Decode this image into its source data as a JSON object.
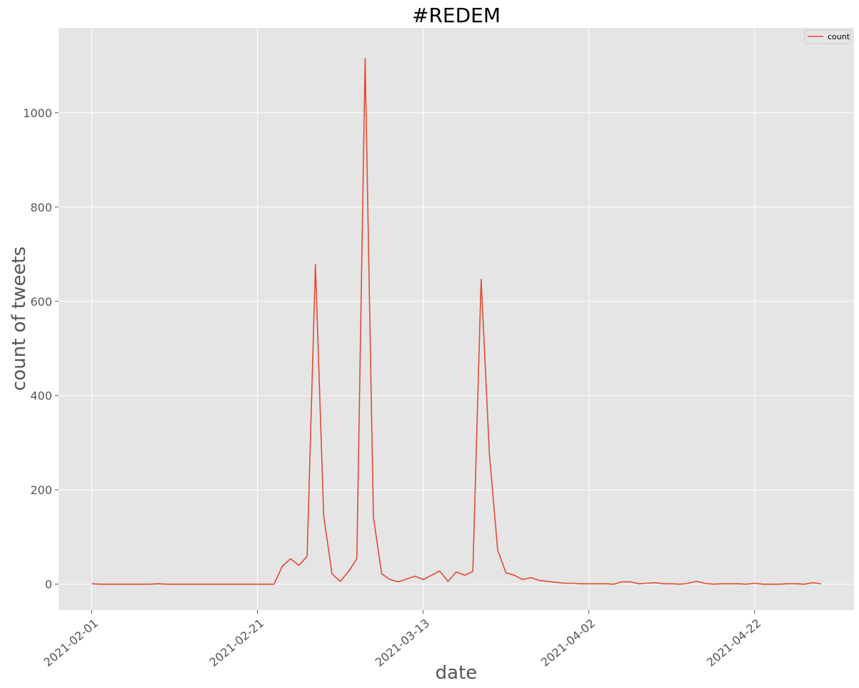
{
  "chart_data": {
    "type": "line",
    "title": "#REDEM",
    "xlabel": "date",
    "ylabel": "count of tweets",
    "grid": true,
    "legend_position": "top-right",
    "xlim": [
      "2021-01-28",
      "2021-05-04"
    ],
    "ylim": [
      -55,
      1180
    ],
    "x_ticks": [
      "2021-02-01",
      "2021-02-21",
      "2021-03-13",
      "2021-04-02",
      "2021-04-22"
    ],
    "y_ticks": [
      0,
      200,
      400,
      600,
      800,
      1000
    ],
    "colors": {
      "background": "#e5e5e5",
      "grid": "#ffffff",
      "line": "#e24a33"
    },
    "series": [
      {
        "name": "count",
        "x": [
          "2021-02-01",
          "2021-02-02",
          "2021-02-03",
          "2021-02-04",
          "2021-02-05",
          "2021-02-06",
          "2021-02-07",
          "2021-02-08",
          "2021-02-09",
          "2021-02-10",
          "2021-02-11",
          "2021-02-12",
          "2021-02-13",
          "2021-02-14",
          "2021-02-15",
          "2021-02-16",
          "2021-02-17",
          "2021-02-18",
          "2021-02-19",
          "2021-02-20",
          "2021-02-21",
          "2021-02-22",
          "2021-02-23",
          "2021-02-24",
          "2021-02-25",
          "2021-02-26",
          "2021-02-27",
          "2021-02-28",
          "2021-03-01",
          "2021-03-02",
          "2021-03-03",
          "2021-03-04",
          "2021-03-05",
          "2021-03-06",
          "2021-03-07",
          "2021-03-08",
          "2021-03-09",
          "2021-03-10",
          "2021-03-11",
          "2021-03-12",
          "2021-03-13",
          "2021-03-14",
          "2021-03-15",
          "2021-03-16",
          "2021-03-17",
          "2021-03-18",
          "2021-03-19",
          "2021-03-20",
          "2021-03-21",
          "2021-03-22",
          "2021-03-23",
          "2021-03-24",
          "2021-03-25",
          "2021-03-26",
          "2021-03-27",
          "2021-03-28",
          "2021-03-29",
          "2021-03-30",
          "2021-03-31",
          "2021-04-01",
          "2021-04-02",
          "2021-04-03",
          "2021-04-04",
          "2021-04-05",
          "2021-04-06",
          "2021-04-07",
          "2021-04-08",
          "2021-04-09",
          "2021-04-10",
          "2021-04-11",
          "2021-04-12",
          "2021-04-13",
          "2021-04-14",
          "2021-04-15",
          "2021-04-16",
          "2021-04-17",
          "2021-04-18",
          "2021-04-19",
          "2021-04-20",
          "2021-04-21",
          "2021-04-22",
          "2021-04-23",
          "2021-04-24",
          "2021-04-25",
          "2021-04-26",
          "2021-04-27",
          "2021-04-28",
          "2021-04-29",
          "2021-04-30"
        ],
        "values": [
          1,
          0,
          0,
          0,
          0,
          0,
          0,
          0,
          1,
          0,
          0,
          0,
          0,
          0,
          0,
          0,
          0,
          0,
          0,
          0,
          0,
          0,
          0,
          38,
          54,
          40,
          59,
          678,
          145,
          22,
          6,
          27,
          54,
          1115,
          142,
          22,
          10,
          5,
          11,
          17,
          10,
          19,
          28,
          6,
          26,
          19,
          27,
          647,
          275,
          72,
          24,
          19,
          10,
          14,
          8,
          6,
          4,
          2,
          2,
          1,
          1,
          1,
          1,
          0,
          5,
          5,
          1,
          2,
          3,
          1,
          1,
          0,
          2,
          6,
          2,
          0,
          1,
          1,
          1,
          0,
          2,
          0,
          0,
          0,
          1,
          1,
          0,
          3,
          1
        ]
      }
    ]
  }
}
